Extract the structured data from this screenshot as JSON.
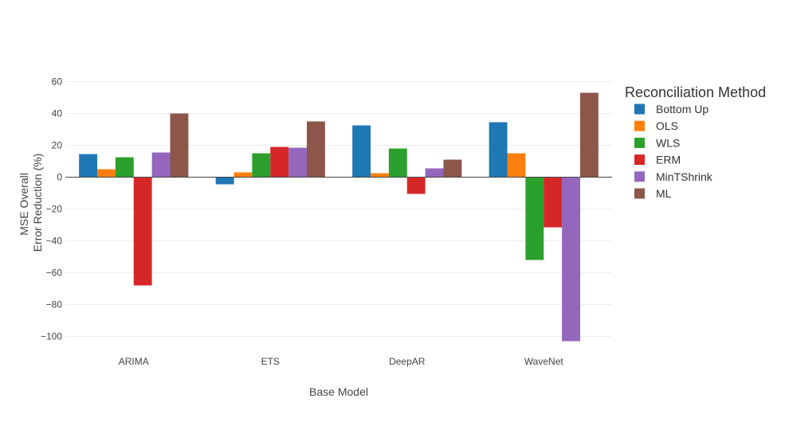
{
  "chart_data": {
    "type": "bar",
    "title": "",
    "xlabel": "Base Model",
    "ylabel_lines": [
      "MSE Overall",
      "Error Reduction (%)"
    ],
    "ylim": [
      -103,
      63
    ],
    "yticks": [
      60,
      40,
      20,
      0,
      -20,
      -40,
      -60,
      -80,
      -100
    ],
    "ytick_labels": [
      "60",
      "40",
      "20",
      "0",
      "−20",
      "−40",
      "−60",
      "−80",
      "−100"
    ],
    "grid": true,
    "categories": [
      "ARIMA",
      "ETS",
      "DeepAR",
      "WaveNet"
    ],
    "legend": {
      "title": "Reconciliation Method",
      "placement": "right"
    },
    "series": [
      {
        "name": "Bottom Up",
        "color": "#1f77b4",
        "values": [
          14.5,
          -4.5,
          32.5,
          34.5
        ]
      },
      {
        "name": "OLS",
        "color": "#ff7f0e",
        "values": [
          5.0,
          3.0,
          2.5,
          15.0
        ]
      },
      {
        "name": "WLS",
        "color": "#2ca02c",
        "values": [
          12.5,
          15.0,
          18.0,
          -52.0
        ]
      },
      {
        "name": "ERM",
        "color": "#d62728",
        "values": [
          -68.0,
          19.0,
          -10.5,
          -31.5
        ]
      },
      {
        "name": "MinTShrink",
        "color": "#9467bd",
        "values": [
          15.5,
          18.5,
          5.5,
          -103.0
        ]
      },
      {
        "name": "ML",
        "color": "#8c564b",
        "values": [
          40.0,
          35.0,
          11.0,
          53.0
        ]
      }
    ]
  }
}
